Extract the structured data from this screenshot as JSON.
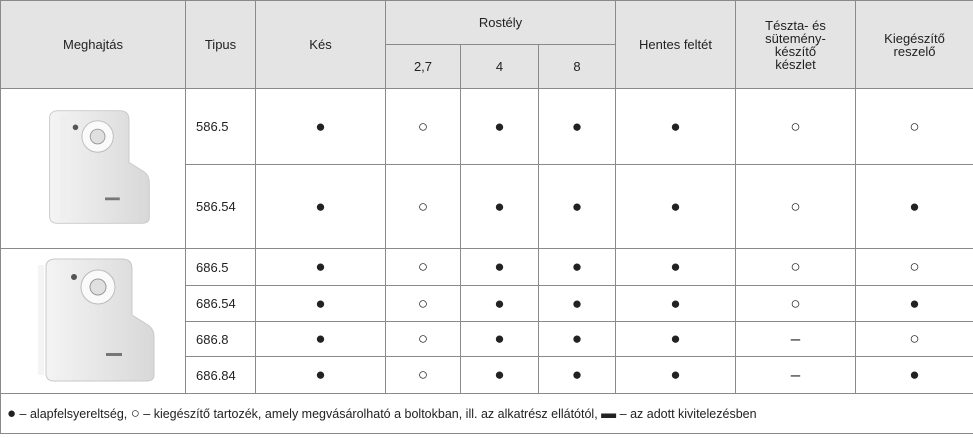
{
  "header": {
    "drive": "Meghajtás",
    "type": "Tipus",
    "knife": "Kés",
    "grate": "Rostély",
    "grate_sizes": [
      "2,7",
      "4",
      "8"
    ],
    "butcher": "Hentes feltét",
    "pasta": [
      "Tészta- és",
      "sütemény-",
      "készítő",
      "készlet"
    ],
    "grater": [
      "Kiegészítő",
      "reszelő"
    ]
  },
  "groups": [
    {
      "rows": [
        {
          "type": "586.5",
          "cells": [
            "●",
            "○",
            "●",
            "●",
            "●",
            "○",
            "○"
          ]
        },
        {
          "type": "586.54",
          "cells": [
            "●",
            "○",
            "●",
            "●",
            "●",
            "○",
            "●"
          ]
        }
      ]
    },
    {
      "rows": [
        {
          "type": "686.5",
          "cells": [
            "●",
            "○",
            "●",
            "●",
            "●",
            "○",
            "○"
          ]
        },
        {
          "type": "686.54",
          "cells": [
            "●",
            "○",
            "●",
            "●",
            "●",
            "○",
            "●"
          ]
        },
        {
          "type": "686.8",
          "cells": [
            "●",
            "○",
            "●",
            "●",
            "●",
            "–",
            "○"
          ]
        },
        {
          "type": "686.84",
          "cells": [
            "●",
            "○",
            "●",
            "●",
            "●",
            "–",
            "●"
          ]
        }
      ]
    }
  ],
  "legend": [
    {
      "symbol": "●",
      "text": "– alapfelsyereltség,"
    },
    {
      "symbol": "○",
      "text": "– kiegészítő tartozék, amely megvásárolható a boltokban, ill. az alkatrész ellátótól,"
    },
    {
      "symbol": "▬",
      "text": "– az adott kivitelezésben"
    }
  ]
}
